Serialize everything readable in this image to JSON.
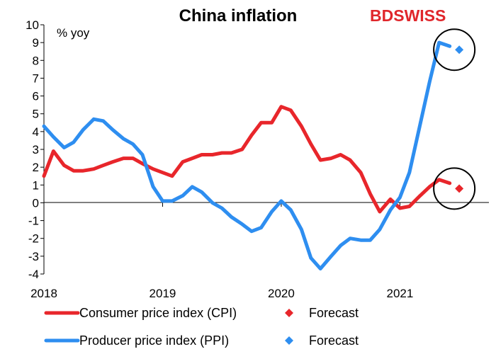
{
  "brand": {
    "part1": "BD",
    "part2": "SWISS",
    "color": "#e0262b"
  },
  "chart_data": {
    "type": "line",
    "title": "China inflation",
    "ylabel": "% yoy",
    "ylim": [
      -4,
      10
    ],
    "yticks": [
      10,
      9,
      8,
      7,
      6,
      5,
      4,
      3,
      2,
      1,
      0,
      -1,
      -2,
      -3,
      -4
    ],
    "xlim": [
      2018.0,
      2021.75
    ],
    "xticks": [
      {
        "value": 2018,
        "label": "2018"
      },
      {
        "value": 2019,
        "label": "2019"
      },
      {
        "value": 2020,
        "label": "2020"
      },
      {
        "value": 2021,
        "label": "2021"
      }
    ],
    "series": [
      {
        "name": "Consumer price index (CPI)",
        "color": "#e8262b",
        "x": [
          2018.0,
          2018.08,
          2018.17,
          2018.25,
          2018.33,
          2018.42,
          2018.5,
          2018.58,
          2018.67,
          2018.75,
          2018.83,
          2018.92,
          2019.0,
          2019.08,
          2019.17,
          2019.25,
          2019.33,
          2019.42,
          2019.5,
          2019.58,
          2019.67,
          2019.75,
          2019.83,
          2019.92,
          2020.0,
          2020.08,
          2020.17,
          2020.25,
          2020.33,
          2020.42,
          2020.5,
          2020.58,
          2020.67,
          2020.75,
          2020.83,
          2020.92,
          2021.0,
          2021.08,
          2021.17,
          2021.25,
          2021.33,
          2021.42
        ],
        "values": [
          1.5,
          2.9,
          2.1,
          1.8,
          1.8,
          1.9,
          2.1,
          2.3,
          2.5,
          2.5,
          2.2,
          1.9,
          1.7,
          1.5,
          2.3,
          2.5,
          2.7,
          2.7,
          2.8,
          2.8,
          3.0,
          3.8,
          4.5,
          4.5,
          5.4,
          5.2,
          4.3,
          3.3,
          2.4,
          2.5,
          2.7,
          2.4,
          1.7,
          0.5,
          -0.5,
          0.2,
          -0.3,
          -0.2,
          0.4,
          0.9,
          1.3,
          1.1
        ]
      },
      {
        "name": "Producer price index (PPI)",
        "color": "#2e8ef0",
        "x": [
          2018.0,
          2018.08,
          2018.17,
          2018.25,
          2018.33,
          2018.42,
          2018.5,
          2018.58,
          2018.67,
          2018.75,
          2018.83,
          2018.92,
          2019.0,
          2019.08,
          2019.17,
          2019.25,
          2019.33,
          2019.42,
          2019.5,
          2019.58,
          2019.67,
          2019.75,
          2019.83,
          2019.92,
          2020.0,
          2020.08,
          2020.17,
          2020.25,
          2020.33,
          2020.42,
          2020.5,
          2020.58,
          2020.67,
          2020.75,
          2020.83,
          2020.92,
          2021.0,
          2021.08,
          2021.17,
          2021.25,
          2021.33,
          2021.42
        ],
        "values": [
          4.3,
          3.7,
          3.1,
          3.4,
          4.1,
          4.7,
          4.6,
          4.1,
          3.6,
          3.3,
          2.7,
          0.9,
          0.1,
          0.1,
          0.4,
          0.9,
          0.6,
          0.0,
          -0.3,
          -0.8,
          -1.2,
          -1.6,
          -1.4,
          -0.5,
          0.1,
          -0.4,
          -1.5,
          -3.1,
          -3.7,
          -3.0,
          -2.4,
          -2.0,
          -2.1,
          -2.1,
          -1.5,
          -0.4,
          0.3,
          1.7,
          4.4,
          6.8,
          9.0,
          8.8
        ]
      }
    ],
    "forecasts": [
      {
        "name": "Forecast",
        "series": "Consumer price index (CPI)",
        "color": "#e8262b",
        "x": 2021.5,
        "value": 0.8
      },
      {
        "name": "Forecast",
        "series": "Producer price index (PPI)",
        "color": "#2e8ef0",
        "x": 2021.5,
        "value": 8.6
      }
    ],
    "annotations": [
      {
        "type": "circle",
        "target": "PPI forecast"
      },
      {
        "type": "circle",
        "target": "CPI forecast"
      }
    ],
    "legend": {
      "position": "bottom",
      "entries": [
        {
          "label": "Consumer price index (CPI)",
          "kind": "line",
          "color": "#e8262b"
        },
        {
          "label": "Forecast",
          "kind": "diamond",
          "color": "#e8262b"
        },
        {
          "label": "Producer price index (PPI)",
          "kind": "line",
          "color": "#2e8ef0"
        },
        {
          "label": "Forecast",
          "kind": "diamond",
          "color": "#2e8ef0"
        }
      ]
    },
    "grid": false
  }
}
